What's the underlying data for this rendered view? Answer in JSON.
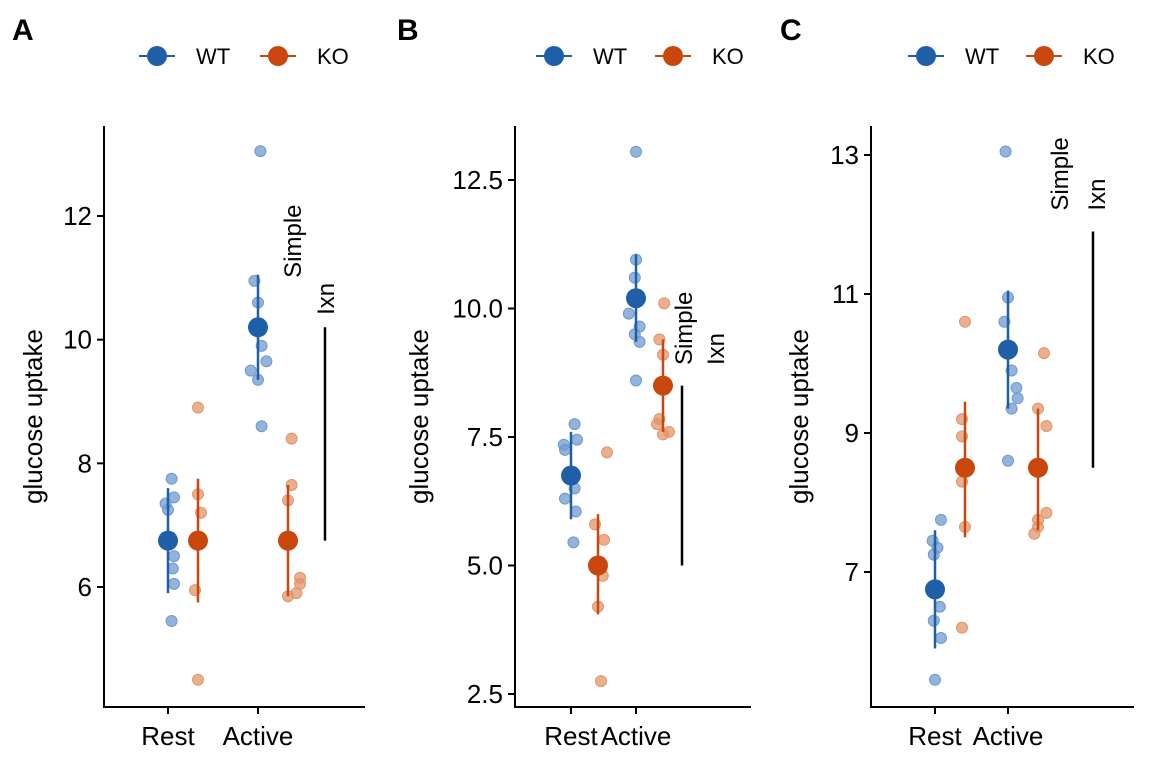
{
  "colors": {
    "WT": "#1F5FA8",
    "KO": "#C9470C",
    "WT_light": "#6F9ACF",
    "KO_light": "#E2946A"
  },
  "chart_data": [
    {
      "type": "scatter",
      "panel_label": "A",
      "xlabel": "",
      "ylabel": "glucose uptake",
      "categories": [
        "Rest",
        "Active"
      ],
      "legend": {
        "position": "top",
        "entries": [
          "WT",
          "KO"
        ]
      },
      "ylim": [
        4.2,
        13.5
      ],
      "yticks": [
        6,
        8,
        10,
        12
      ],
      "ytick_labels": [
        "6",
        "8",
        "10",
        "12"
      ],
      "grid": false,
      "series": [
        {
          "name": "WT",
          "points": [
            {
              "category": "Rest",
              "mean": 6.75,
              "ci": [
                5.9,
                7.6
              ],
              "raw": [
                [
                  0.06,
                  7.75
                ],
                [
                  0.1,
                  7.45
                ],
                [
                  -0.04,
                  7.35
                ],
                [
                  0.0,
                  7.25
                ],
                [
                  0.1,
                  6.5
                ],
                [
                  0.08,
                  6.3
                ],
                [
                  0.1,
                  6.05
                ],
                [
                  0.06,
                  5.45
                ]
              ]
            },
            {
              "category": "Active",
              "mean": 10.2,
              "ci": [
                9.35,
                11.05
              ],
              "raw": [
                [
                  -0.06,
                  10.95
                ],
                [
                  0.0,
                  10.6
                ],
                [
                  0.06,
                  9.9
                ],
                [
                  0.14,
                  9.65
                ],
                [
                  -0.12,
                  9.5
                ],
                [
                  0.0,
                  9.35
                ],
                [
                  0.06,
                  8.6
                ],
                [
                  0.04,
                  13.05
                ]
              ]
            }
          ]
        },
        {
          "name": "KO",
          "points": [
            {
              "category": "Rest",
              "mean": 6.75,
              "ci": [
                5.75,
                7.75
              ],
              "raw": [
                [
                  0.0,
                  8.9
                ],
                [
                  0.0,
                  7.5
                ],
                [
                  0.05,
                  7.2
                ],
                [
                  -0.05,
                  5.95
                ],
                [
                  0.0,
                  4.5
                ]
              ]
            },
            {
              "category": "Active",
              "mean": 6.75,
              "ci": [
                5.85,
                7.65
              ],
              "raw": [
                [
                  0.06,
                  8.4
                ],
                [
                  0.06,
                  7.65
                ],
                [
                  0.0,
                  7.4
                ],
                [
                  0.2,
                  6.15
                ],
                [
                  0.2,
                  6.05
                ],
                [
                  0.14,
                  5.9
                ],
                [
                  0.0,
                  5.85
                ]
              ]
            }
          ]
        }
      ],
      "annotations": {
        "simple": {
          "label": "Simple",
          "y": 11.0
        },
        "ixn": {
          "label": "Ixn",
          "y": 10.4,
          "bar": [
            6.75,
            10.2
          ]
        }
      }
    },
    {
      "type": "scatter",
      "panel_label": "B",
      "xlabel": "",
      "ylabel": "glucose uptake",
      "categories": [
        "Rest",
        "Active"
      ],
      "legend": {
        "position": "top",
        "entries": [
          "WT",
          "KO"
        ]
      },
      "ylim": [
        2.25,
        13.5
      ],
      "yticks": [
        2.5,
        5.0,
        7.5,
        10.0,
        12.5
      ],
      "ytick_labels": [
        "2.5",
        "5.0",
        "7.5",
        "10.0",
        "12.5"
      ],
      "grid": false,
      "series": [
        {
          "name": "WT",
          "points": [
            {
              "category": "Rest",
              "mean": 6.75,
              "ci": [
                5.9,
                7.6
              ],
              "raw": [
                [
                  0.06,
                  7.75
                ],
                [
                  0.1,
                  7.45
                ],
                [
                  -0.12,
                  7.35
                ],
                [
                  -0.1,
                  7.25
                ],
                [
                  0.06,
                  6.5
                ],
                [
                  -0.1,
                  6.3
                ],
                [
                  0.08,
                  6.05
                ],
                [
                  0.04,
                  5.45
                ]
              ]
            },
            {
              "category": "Active",
              "mean": 10.2,
              "ci": [
                9.35,
                11.05
              ],
              "raw": [
                [
                  0.0,
                  10.95
                ],
                [
                  -0.02,
                  10.6
                ],
                [
                  -0.12,
                  9.9
                ],
                [
                  0.06,
                  9.65
                ],
                [
                  -0.02,
                  9.5
                ],
                [
                  0.06,
                  9.35
                ],
                [
                  0.0,
                  8.6
                ],
                [
                  0.0,
                  13.05
                ]
              ]
            }
          ]
        },
        {
          "name": "KO",
          "points": [
            {
              "category": "Rest",
              "mean": 5.0,
              "ci": [
                4.05,
                6.0
              ],
              "raw": [
                [
                  0.15,
                  7.2
                ],
                [
                  -0.05,
                  5.8
                ],
                [
                  0.1,
                  5.5
                ],
                [
                  0.08,
                  4.8
                ],
                [
                  0.0,
                  4.2
                ],
                [
                  0.05,
                  2.75
                ]
              ]
            },
            {
              "category": "Active",
              "mean": 8.5,
              "ci": [
                7.6,
                9.4
              ],
              "raw": [
                [
                  0.02,
                  10.1
                ],
                [
                  -0.06,
                  9.4
                ],
                [
                  0.0,
                  9.1
                ],
                [
                  -0.06,
                  7.85
                ],
                [
                  -0.1,
                  7.75
                ],
                [
                  0.1,
                  7.6
                ],
                [
                  0.0,
                  7.55
                ]
              ]
            }
          ]
        }
      ],
      "annotations": {
        "simple": {
          "label": "Simple",
          "y": 8.9
        },
        "ixn": {
          "label": "Ixn",
          "y": 8.9,
          "bar": [
            5.0,
            8.5
          ]
        }
      }
    },
    {
      "type": "scatter",
      "panel_label": "C",
      "xlabel": "",
      "ylabel": "glucose uptake",
      "categories": [
        "Rest",
        "Active"
      ],
      "legend": {
        "position": "top",
        "entries": [
          "WT",
          "KO"
        ]
      },
      "ylim": [
        5.2,
        13.45
      ],
      "yticks": [
        7,
        9,
        11,
        13
      ],
      "ytick_labels": [
        "7",
        "9",
        "11",
        "13"
      ],
      "grid": false,
      "series": [
        {
          "name": "WT",
          "points": [
            {
              "category": "Rest",
              "mean": 6.75,
              "ci": [
                5.9,
                7.6
              ],
              "raw": [
                [
                  0.1,
                  7.75
                ],
                [
                  -0.04,
                  7.45
                ],
                [
                  -0.02,
                  7.25
                ],
                [
                  0.04,
                  7.35
                ],
                [
                  0.08,
                  6.5
                ],
                [
                  -0.02,
                  6.3
                ],
                [
                  0.1,
                  6.05
                ],
                [
                  0.0,
                  5.45
                ]
              ]
            },
            {
              "category": "Active",
              "mean": 10.2,
              "ci": [
                9.35,
                11.05
              ],
              "raw": [
                [
                  0.0,
                  10.95
                ],
                [
                  -0.06,
                  10.6
                ],
                [
                  0.06,
                  9.9
                ],
                [
                  0.14,
                  9.65
                ],
                [
                  0.16,
                  9.5
                ],
                [
                  0.06,
                  9.35
                ],
                [
                  0.0,
                  8.6
                ],
                [
                  -0.04,
                  13.05
                ]
              ]
            }
          ]
        },
        {
          "name": "KO",
          "points": [
            {
              "category": "Rest",
              "mean": 8.5,
              "ci": [
                7.5,
                9.45
              ],
              "raw": [
                [
                  0.0,
                  10.6
                ],
                [
                  -0.05,
                  9.2
                ],
                [
                  -0.05,
                  8.95
                ],
                [
                  -0.05,
                  8.3
                ],
                [
                  0.0,
                  7.65
                ],
                [
                  -0.05,
                  6.2
                ]
              ]
            },
            {
              "category": "Active",
              "mean": 8.5,
              "ci": [
                7.6,
                9.35
              ],
              "raw": [
                [
                  0.1,
                  10.15
                ],
                [
                  0.0,
                  9.35
                ],
                [
                  0.14,
                  9.1
                ],
                [
                  0.14,
                  7.85
                ],
                [
                  0.0,
                  7.75
                ],
                [
                  0.0,
                  7.65
                ],
                [
                  -0.06,
                  7.55
                ]
              ]
            }
          ]
        }
      ],
      "annotations": {
        "simple": {
          "label": "Simple",
          "y": 12.2
        },
        "ixn": {
          "label": "Ixn",
          "y": 12.2,
          "bar": [
            8.5,
            11.9
          ]
        }
      }
    }
  ]
}
